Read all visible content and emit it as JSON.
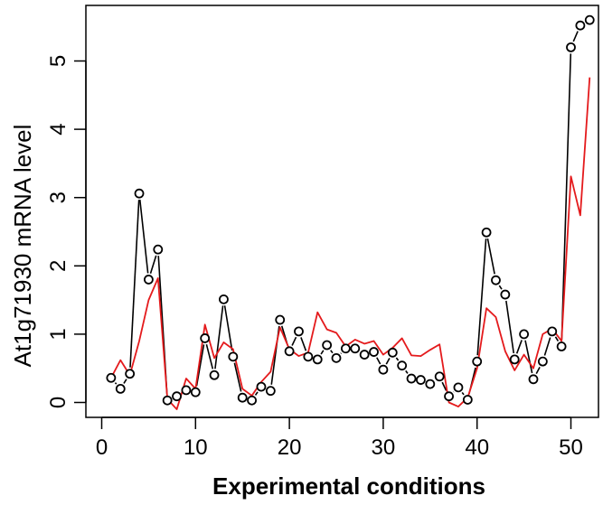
{
  "chart_data": {
    "type": "line",
    "title": "",
    "xlabel": "Experimental conditions",
    "ylabel": "At1g71930 mRNA level",
    "xlim": [
      0,
      52
    ],
    "ylim": [
      0,
      5.6
    ],
    "x_ticks": [
      0,
      10,
      20,
      30,
      40,
      50
    ],
    "y_ticks": [
      0,
      1,
      2,
      3,
      4,
      5
    ],
    "grid": false,
    "legend": "none",
    "x": [
      1,
      2,
      3,
      4,
      5,
      6,
      7,
      8,
      9,
      10,
      11,
      12,
      13,
      14,
      15,
      16,
      17,
      18,
      19,
      20,
      21,
      22,
      23,
      24,
      25,
      26,
      27,
      28,
      29,
      30,
      31,
      32,
      33,
      34,
      35,
      36,
      37,
      38,
      39,
      40,
      41,
      42,
      43,
      44,
      45,
      46,
      47,
      48,
      49,
      50,
      51,
      52
    ],
    "series": [
      {
        "style": "points-with-black-line",
        "color": "#000000",
        "values": [
          0.36,
          0.2,
          0.42,
          3.06,
          1.8,
          2.24,
          0.03,
          0.09,
          0.18,
          0.15,
          0.94,
          0.4,
          1.51,
          0.67,
          0.07,
          0.03,
          0.23,
          0.17,
          1.21,
          0.75,
          1.04,
          0.67,
          0.63,
          0.84,
          0.65,
          0.79,
          0.79,
          0.7,
          0.74,
          0.48,
          0.73,
          0.54,
          0.35,
          0.33,
          0.27,
          0.38,
          0.09,
          0.22,
          0.04,
          0.6,
          2.49,
          1.79,
          1.58,
          0.63,
          1.0,
          0.34,
          0.6,
          1.04,
          0.82,
          5.2,
          5.52,
          5.6
        ]
      },
      {
        "style": "red-line",
        "color": "#e41a1c",
        "values": [
          0.36,
          0.62,
          0.4,
          0.9,
          1.5,
          1.82,
          0.05,
          -0.1,
          0.35,
          0.2,
          1.14,
          0.65,
          0.88,
          0.78,
          0.2,
          0.1,
          0.3,
          0.45,
          1.1,
          0.78,
          0.68,
          0.73,
          1.32,
          1.07,
          1.02,
          0.82,
          0.92,
          0.86,
          0.9,
          0.7,
          0.8,
          0.94,
          0.69,
          0.68,
          0.77,
          0.85,
          0.0,
          -0.06,
          0.07,
          0.5,
          1.38,
          1.25,
          0.75,
          0.47,
          0.7,
          0.5,
          1.0,
          1.08,
          0.9,
          3.31,
          2.74,
          4.76
        ]
      }
    ]
  }
}
